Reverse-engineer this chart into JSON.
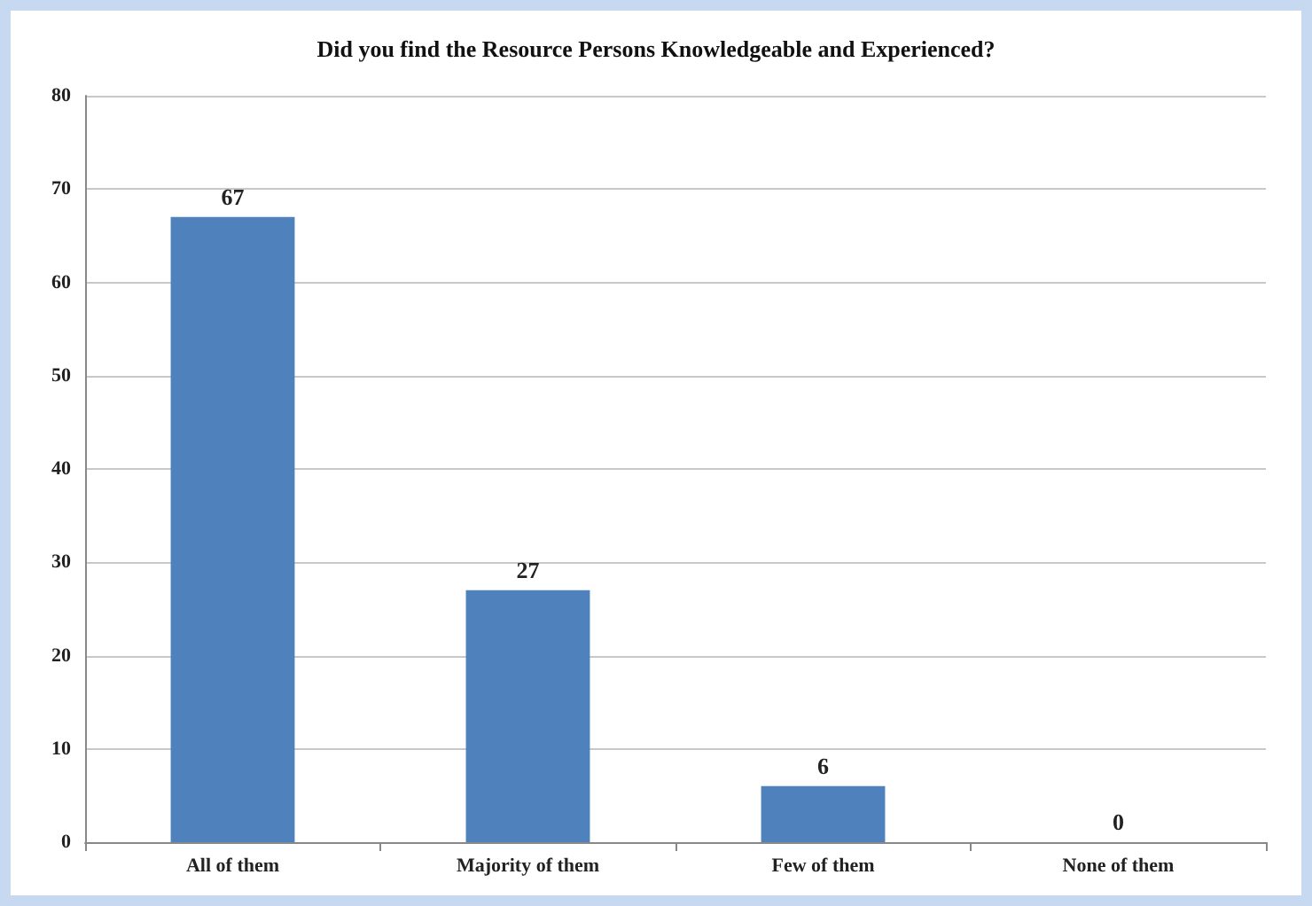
{
  "chart_data": {
    "type": "bar",
    "title": "Did you find the Resource Persons Knowledgeable and Experienced?",
    "categories": [
      "All of them",
      "Majority of them",
      "Few of them",
      "None of them"
    ],
    "values": [
      67,
      27,
      6,
      0
    ],
    "color": "#4f81bd",
    "ylim": [
      0,
      80
    ],
    "yticks": [
      0,
      10,
      20,
      30,
      40,
      50,
      60,
      70,
      80
    ],
    "grid": "y",
    "data_labels": true
  }
}
